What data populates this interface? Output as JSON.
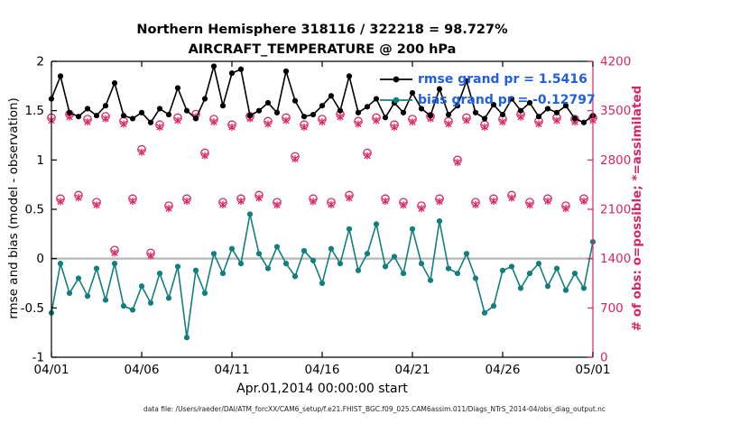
{
  "chart_data": {
    "type": "line",
    "title": "Northern Hemisphere 318116 / 322218 = 98.727%",
    "subtitle": "AIRCRAFT_TEMPERATURE @ 200 hPa",
    "xlabel": "Apr.01,2014 00:00:00 start",
    "ylabel_left": "rmse and bias (model - observation)",
    "ylabel_right": "# of obs: o=possible; *=assimilated",
    "caption": "data file: /Users/raeder/DAI/ATM_forcXX/CAM6_setup/f.e21.FHIST_BGC.f09_025.CAM6assim.011/Diags_NTrS_2014-04/obs_diag_output.nc",
    "legend": [
      {
        "label": "rmse grand pr = 1.5416",
        "series": "rmse"
      },
      {
        "label": "bias grand pr = -0.12797",
        "series": "bias"
      }
    ],
    "colors": {
      "rmse": "#000000",
      "bias": "#127F7E",
      "obs": "#D92565",
      "legend_text": "#2060E0",
      "zero_line": "#BDBDBD"
    },
    "x_axis": {
      "range": [
        0,
        30
      ],
      "tick_positions": [
        0,
        5,
        10,
        15,
        20,
        25,
        30
      ],
      "tick_labels": [
        "04/01",
        "04/06",
        "04/11",
        "04/16",
        "04/21",
        "04/26",
        "05/01"
      ]
    },
    "y_left": {
      "range": [
        -1,
        2
      ],
      "tick_positions": [
        -1,
        -0.5,
        0,
        0.5,
        1,
        1.5,
        2
      ],
      "tick_labels": [
        "-1",
        "-0.5",
        "0",
        "0.5",
        "1",
        "1.5",
        "2"
      ]
    },
    "y_right": {
      "range": [
        0,
        4200
      ],
      "tick_positions": [
        0,
        700,
        1400,
        2100,
        2800,
        3500,
        4200
      ],
      "tick_labels": [
        "0",
        "700",
        "1400",
        "2100",
        "2800",
        "3500",
        "4200"
      ]
    },
    "zero_line_value": 0,
    "x": [
      0,
      0.5,
      1,
      1.5,
      2,
      2.5,
      3,
      3.5,
      4,
      4.5,
      5,
      5.5,
      6,
      6.5,
      7,
      7.5,
      8,
      8.5,
      9,
      9.5,
      10,
      10.5,
      11,
      11.5,
      12,
      12.5,
      13,
      13.5,
      14,
      14.5,
      15,
      15.5,
      16,
      16.5,
      17,
      17.5,
      18,
      18.5,
      19,
      19.5,
      20,
      20.5,
      21,
      21.5,
      22,
      22.5,
      23,
      23.5,
      24,
      24.5,
      25,
      25.5,
      26,
      26.5,
      27,
      27.5,
      28,
      28.5,
      29,
      29.5,
      30
    ],
    "series": [
      {
        "name": "rmse",
        "axis": "left",
        "marker": "dot",
        "color": "#000000",
        "values": [
          1.62,
          1.85,
          1.48,
          1.44,
          1.52,
          1.45,
          1.55,
          1.78,
          1.45,
          1.42,
          1.48,
          1.38,
          1.52,
          1.46,
          1.73,
          1.5,
          1.42,
          1.62,
          1.95,
          1.55,
          1.88,
          1.92,
          1.45,
          1.5,
          1.58,
          1.48,
          1.9,
          1.6,
          1.44,
          1.46,
          1.55,
          1.65,
          1.5,
          1.85,
          1.48,
          1.54,
          1.62,
          1.43,
          1.58,
          1.48,
          1.68,
          1.52,
          1.45,
          1.72,
          1.46,
          1.55,
          1.8,
          1.48,
          1.42,
          1.56,
          1.46,
          1.62,
          1.5,
          1.58,
          1.44,
          1.52,
          1.48,
          1.55,
          1.42,
          1.38,
          1.45
        ]
      },
      {
        "name": "bias",
        "axis": "left",
        "marker": "dot",
        "color": "#127F7E",
        "values": [
          -0.55,
          -0.05,
          -0.35,
          -0.2,
          -0.38,
          -0.1,
          -0.42,
          -0.05,
          -0.48,
          -0.52,
          -0.28,
          -0.45,
          -0.15,
          -0.4,
          -0.08,
          -0.8,
          -0.12,
          -0.35,
          0.05,
          -0.15,
          0.1,
          -0.05,
          0.45,
          0.05,
          -0.1,
          0.12,
          -0.05,
          -0.18,
          0.08,
          -0.02,
          -0.25,
          0.1,
          -0.05,
          0.3,
          -0.12,
          0.05,
          0.35,
          -0.08,
          0.02,
          -0.15,
          0.3,
          -0.05,
          -0.22,
          0.38,
          -0.1,
          -0.15,
          0.05,
          -0.2,
          -0.55,
          -0.48,
          -0.12,
          -0.08,
          -0.3,
          -0.15,
          -0.05,
          -0.28,
          -0.1,
          -0.32,
          -0.15,
          -0.3,
          0.17
        ]
      },
      {
        "name": "possible",
        "axis": "right",
        "marker": "circle",
        "color": "#D92565",
        "values": [
          3400,
          2250,
          3450,
          2300,
          3380,
          2200,
          3420,
          1520,
          3350,
          2250,
          2950,
          1480,
          3300,
          2150,
          3400,
          2250,
          3450,
          2900,
          3380,
          2200,
          3300,
          2250,
          3420,
          2300,
          3350,
          2200,
          3400,
          2850,
          3300,
          2250,
          3380,
          2200,
          3450,
          2300,
          3350,
          2900,
          3400,
          2250,
          3300,
          2200,
          3380,
          2150,
          3420,
          2250,
          3350,
          2800,
          3400,
          2200,
          3300,
          2250,
          3380,
          2300,
          3450,
          2200,
          3350,
          2250,
          3400,
          2150,
          3380,
          2250,
          3400
        ]
      },
      {
        "name": "assimilated",
        "axis": "right",
        "marker": "cross",
        "color": "#D92565",
        "values": [
          3360,
          2210,
          3410,
          2265,
          3340,
          2160,
          3385,
          1480,
          3310,
          2215,
          2910,
          1440,
          3265,
          2110,
          3360,
          2215,
          3415,
          2860,
          3340,
          2165,
          3265,
          2215,
          3385,
          2260,
          3310,
          2160,
          3360,
          2815,
          3265,
          2210,
          3340,
          2165,
          3410,
          2260,
          3310,
          2860,
          3360,
          2215,
          3265,
          2160,
          3340,
          2110,
          3385,
          2210,
          3310,
          2765,
          3360,
          2165,
          3265,
          2215,
          3340,
          2260,
          3410,
          2160,
          3310,
          2215,
          3360,
          2110,
          3340,
          2215,
          3360
        ]
      }
    ]
  }
}
